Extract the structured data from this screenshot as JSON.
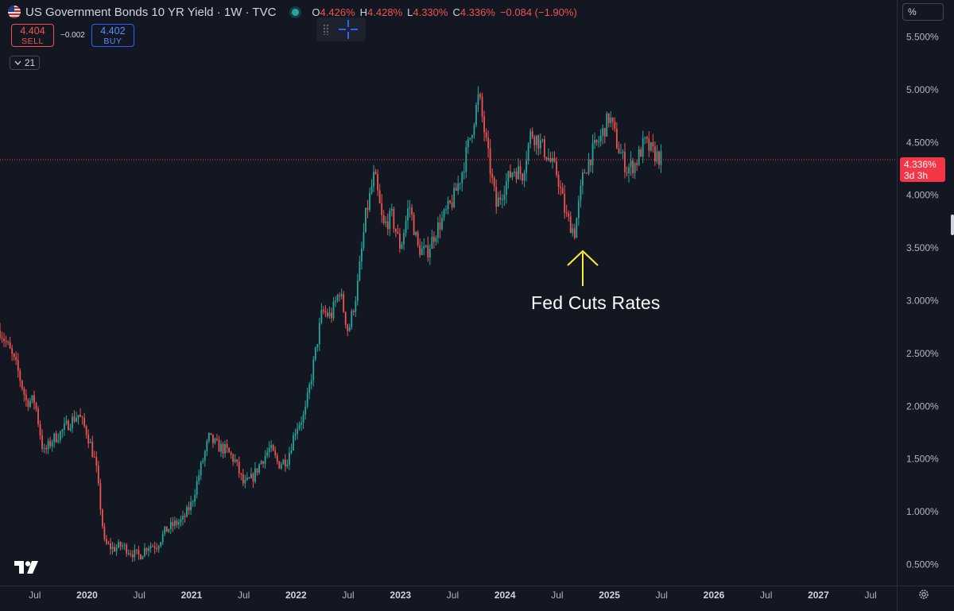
{
  "header": {
    "title": "US Government Bonds 10 YR Yield · 1W · TVC",
    "ohlc": [
      {
        "key": "O",
        "value": "4.426%"
      },
      {
        "key": "H",
        "value": "4.428%"
      },
      {
        "key": "L",
        "value": "4.330%"
      },
      {
        "key": "C",
        "value": "4.336%"
      },
      {
        "key": "",
        "value": "−0.084 (−1.90%)"
      }
    ]
  },
  "trade": {
    "sell_price": "4.404",
    "sell_label": "SELL",
    "spread": "−0.002",
    "buy_price": "4.402",
    "buy_label": "BUY"
  },
  "indicator_badge": "21",
  "scale_mode": "%",
  "price_tag": {
    "value": "4.336%",
    "countdown": "3d 3h"
  },
  "annotation": "Fed Cuts Rates",
  "colors": {
    "background": "#131722",
    "up": "#26a69a",
    "down": "#ef5350",
    "arrow": "#ffeb3b",
    "price_line": "#f23645"
  },
  "chart_data": {
    "type": "candlestick",
    "title": "US Government Bonds 10 YR Yield",
    "interval": "1W",
    "y_unit": "%",
    "y_ticks": [
      "0.500%",
      "1.000%",
      "1.500%",
      "2.000%",
      "2.500%",
      "3.000%",
      "3.500%",
      "4.000%",
      "4.500%",
      "5.000%",
      "5.500%"
    ],
    "x_ticks": [
      "Jul",
      "2020",
      "Jul",
      "2021",
      "Jul",
      "2022",
      "Jul",
      "2023",
      "Jul",
      "2024",
      "Jul",
      "2025",
      "Jul",
      "2026",
      "Jul",
      "2027",
      "Jul"
    ],
    "ylim": [
      0.3,
      5.85
    ],
    "x_range": [
      "2019-03",
      "2027-10"
    ],
    "last_close": 4.336,
    "grid": false,
    "path": [
      [
        "2019-03",
        2.72
      ],
      [
        "2019-04",
        2.55
      ],
      [
        "2019-05",
        2.35
      ],
      [
        "2019-06",
        2.05
      ],
      [
        "2019-07",
        2.05
      ],
      [
        "2019-08",
        1.55
      ],
      [
        "2019-09",
        1.68
      ],
      [
        "2019-10",
        1.75
      ],
      [
        "2019-11",
        1.85
      ],
      [
        "2019-12",
        1.92
      ],
      [
        "2020-01",
        1.75
      ],
      [
        "2020-02",
        1.45
      ],
      [
        "2020-03",
        0.7
      ],
      [
        "2020-04",
        0.65
      ],
      [
        "2020-05",
        0.68
      ],
      [
        "2020-06",
        0.62
      ],
      [
        "2020-07",
        0.58
      ],
      [
        "2020-08",
        0.68
      ],
      [
        "2020-09",
        0.68
      ],
      [
        "2020-10",
        0.82
      ],
      [
        "2020-11",
        0.88
      ],
      [
        "2020-12",
        0.92
      ],
      [
        "2021-01",
        1.08
      ],
      [
        "2021-02",
        1.4
      ],
      [
        "2021-03",
        1.7
      ],
      [
        "2021-04",
        1.62
      ],
      [
        "2021-05",
        1.58
      ],
      [
        "2021-06",
        1.48
      ],
      [
        "2021-07",
        1.25
      ],
      [
        "2021-08",
        1.32
      ],
      [
        "2021-09",
        1.48
      ],
      [
        "2021-10",
        1.6
      ],
      [
        "2021-11",
        1.45
      ],
      [
        "2021-12",
        1.5
      ],
      [
        "2022-01",
        1.8
      ],
      [
        "2022-02",
        1.92
      ],
      [
        "2022-03",
        2.4
      ],
      [
        "2022-04",
        2.9
      ],
      [
        "2022-05",
        2.85
      ],
      [
        "2022-06",
        3.1
      ],
      [
        "2022-07",
        2.7
      ],
      [
        "2022-08",
        3.1
      ],
      [
        "2022-09",
        3.8
      ],
      [
        "2022-10",
        4.2
      ],
      [
        "2022-11",
        3.7
      ],
      [
        "2022-12",
        3.8
      ],
      [
        "2023-01",
        3.5
      ],
      [
        "2023-02",
        3.92
      ],
      [
        "2023-03",
        3.5
      ],
      [
        "2023-04",
        3.45
      ],
      [
        "2023-05",
        3.65
      ],
      [
        "2023-06",
        3.8
      ],
      [
        "2023-07",
        3.95
      ],
      [
        "2023-08",
        4.2
      ],
      [
        "2023-09",
        4.55
      ],
      [
        "2023-10",
        4.95
      ],
      [
        "2023-11",
        4.4
      ],
      [
        "2023-12",
        3.9
      ],
      [
        "2024-01",
        4.1
      ],
      [
        "2024-02",
        4.25
      ],
      [
        "2024-03",
        4.2
      ],
      [
        "2024-04",
        4.6
      ],
      [
        "2024-05",
        4.5
      ],
      [
        "2024-06",
        4.35
      ],
      [
        "2024-07",
        4.2
      ],
      [
        "2024-08",
        3.8
      ],
      [
        "2024-09",
        3.65
      ],
      [
        "2024-10",
        4.2
      ],
      [
        "2024-11",
        4.4
      ],
      [
        "2024-12",
        4.55
      ],
      [
        "2025-01",
        4.75
      ],
      [
        "2025-02",
        4.45
      ],
      [
        "2025-03",
        4.25
      ],
      [
        "2025-04",
        4.3
      ],
      [
        "2025-05",
        4.5
      ],
      [
        "2025-06",
        4.4
      ],
      [
        "2025-07",
        4.34
      ]
    ]
  }
}
